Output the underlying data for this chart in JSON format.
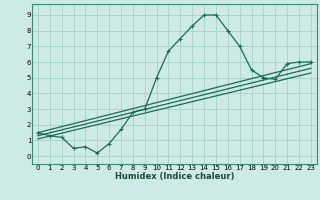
{
  "xlabel": "Humidex (Indice chaleur)",
  "background_color": "#ceeae6",
  "grid_color": "#aed4d0",
  "line_color": "#1a6b5a",
  "xlim": [
    -0.5,
    23.5
  ],
  "ylim": [
    -0.5,
    9.7
  ],
  "xticks": [
    0,
    1,
    2,
    3,
    4,
    5,
    6,
    7,
    8,
    9,
    10,
    11,
    12,
    13,
    14,
    15,
    16,
    17,
    18,
    19,
    20,
    21,
    22,
    23
  ],
  "yticks": [
    0,
    1,
    2,
    3,
    4,
    5,
    6,
    7,
    8,
    9
  ],
  "curve1_x": [
    0,
    1,
    2,
    3,
    4,
    5,
    6,
    7,
    8,
    9,
    10,
    11,
    12,
    13,
    14,
    15,
    16,
    17,
    18,
    19,
    20,
    21,
    22,
    23
  ],
  "curve1_y": [
    1.5,
    1.3,
    1.2,
    0.5,
    0.6,
    0.2,
    0.8,
    1.7,
    2.8,
    3.0,
    5.0,
    6.7,
    7.5,
    8.3,
    9.0,
    9.0,
    8.0,
    7.0,
    5.5,
    5.0,
    4.9,
    5.9,
    6.0,
    6.0
  ],
  "line1_x": [
    0,
    23
  ],
  "line1_y": [
    1.5,
    5.9
  ],
  "line2_x": [
    0,
    23
  ],
  "line2_y": [
    1.3,
    5.6
  ],
  "line3_x": [
    0,
    23
  ],
  "line3_y": [
    1.1,
    5.3
  ],
  "xlabel_fontsize": 6.0,
  "tick_fontsize": 5.0
}
